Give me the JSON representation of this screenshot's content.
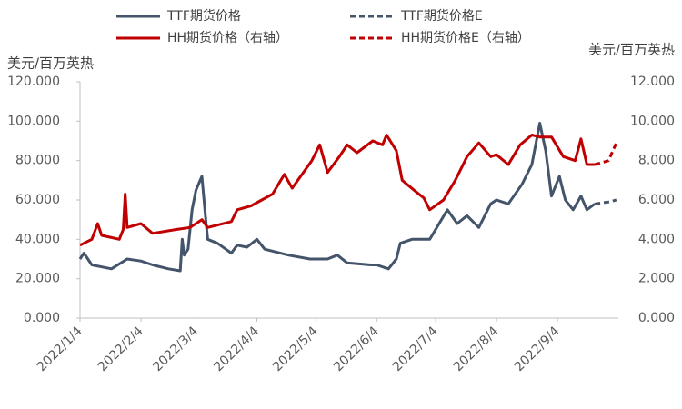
{
  "chart_data": {
    "type": "line",
    "ylabel": "美元/百万英热",
    "y2label": "美元/百万英热",
    "xlim": [
      "2022/1/4",
      "2022/10/5"
    ],
    "xticks": [
      "2022/1/4",
      "2022/2/4",
      "2022/3/4",
      "2022/4/4",
      "2022/5/4",
      "2022/6/4",
      "2022/7/4",
      "2022/8/4",
      "2022/9/4"
    ],
    "ylim": [
      0,
      120
    ],
    "yticks": [
      {
        "value": 0,
        "label": "0.000"
      },
      {
        "value": 20,
        "label": "20.000"
      },
      {
        "value": 40,
        "label": "40.000"
      },
      {
        "value": 60,
        "label": "60.000"
      },
      {
        "value": 80,
        "label": "80.000"
      },
      {
        "value": 100,
        "label": "100.000"
      },
      {
        "value": 120,
        "label": "120.000"
      }
    ],
    "y2lim": [
      0,
      12
    ],
    "y2ticks": [
      {
        "value": 0,
        "label": "0.000"
      },
      {
        "value": 2,
        "label": "2.000"
      },
      {
        "value": 4,
        "label": "4.000"
      },
      {
        "value": 6,
        "label": "6.000"
      },
      {
        "value": 8,
        "label": "8.000"
      },
      {
        "value": 10,
        "label": "10.000"
      },
      {
        "value": 12,
        "label": "12.000"
      }
    ],
    "series": [
      {
        "name": "TTF期货价格",
        "color": "#44546a",
        "dash": false,
        "x": [
          "2022/1/4",
          "2022/1/6",
          "2022/1/10",
          "2022/1/20",
          "2022/1/28",
          "2022/2/4",
          "2022/2/10",
          "2022/2/18",
          "2022/2/24",
          "2022/2/25",
          "2022/2/26",
          "2022/2/28",
          "2022/3/2",
          "2022/3/4",
          "2022/3/7",
          "2022/3/9",
          "2022/3/10",
          "2022/3/15",
          "2022/3/22",
          "2022/3/25",
          "2022/3/30",
          "2022/4/4",
          "2022/4/8",
          "2022/4/20",
          "2022/5/1",
          "2022/5/10",
          "2022/5/15",
          "2022/5/20",
          "2022/6/1",
          "2022/6/4",
          "2022/6/10",
          "2022/6/14",
          "2022/6/16",
          "2022/6/22",
          "2022/7/1",
          "2022/7/4",
          "2022/7/10",
          "2022/7/15",
          "2022/7/20",
          "2022/7/26",
          "2022/8/1",
          "2022/8/4",
          "2022/8/10",
          "2022/8/17",
          "2022/8/22",
          "2022/8/26",
          "2022/8/29",
          "2022/9/1",
          "2022/9/5",
          "2022/9/8",
          "2022/9/12",
          "2022/9/16",
          "2022/9/19",
          "2022/9/23"
        ],
        "values": [
          30,
          33,
          27,
          25,
          30,
          29,
          27,
          25,
          24,
          40,
          32,
          35,
          55,
          65,
          72,
          50,
          40,
          38,
          33,
          37,
          36,
          40,
          35,
          32,
          30,
          30,
          32,
          28,
          27,
          27,
          25,
          30,
          38,
          40,
          40,
          45,
          55,
          48,
          52,
          46,
          58,
          60,
          58,
          68,
          78,
          99,
          85,
          62,
          72,
          60,
          55,
          62,
          55,
          58
        ]
      },
      {
        "name": "TTF期货价格E",
        "color": "#44546a",
        "dash": true,
        "x": [
          "2022/9/23",
          "2022/9/30",
          "2022/10/4"
        ],
        "values": [
          58,
          59,
          60
        ]
      },
      {
        "name": "HH期货价格（右轴）",
        "color": "#c00000",
        "dash": false,
        "axis": "y2",
        "x": [
          "2022/1/4",
          "2022/1/10",
          "2022/1/13",
          "2022/1/15",
          "2022/1/24",
          "2022/1/26",
          "2022/1/27",
          "2022/1/28",
          "2022/2/4",
          "2022/2/10",
          "2022/2/22",
          "2022/3/1",
          "2022/3/7",
          "2022/3/10",
          "2022/3/22",
          "2022/3/25",
          "2022/4/1",
          "2022/4/12",
          "2022/4/18",
          "2022/4/22",
          "2022/5/2",
          "2022/5/6",
          "2022/5/10",
          "2022/5/16",
          "2022/5/20",
          "2022/5/25",
          "2022/6/2",
          "2022/6/7",
          "2022/6/9",
          "2022/6/14",
          "2022/6/17",
          "2022/6/23",
          "2022/6/28",
          "2022/7/1",
          "2022/7/8",
          "2022/7/14",
          "2022/7/20",
          "2022/7/26",
          "2022/8/1",
          "2022/8/4",
          "2022/8/10",
          "2022/8/16",
          "2022/8/22",
          "2022/8/26",
          "2022/9/1",
          "2022/9/7",
          "2022/9/13",
          "2022/9/16",
          "2022/9/19",
          "2022/9/23"
        ],
        "values": [
          3.7,
          4.0,
          4.8,
          4.2,
          4.0,
          4.5,
          6.3,
          4.6,
          4.8,
          4.3,
          4.5,
          4.6,
          5.0,
          4.6,
          4.9,
          5.5,
          5.7,
          6.3,
          7.3,
          6.6,
          8.0,
          8.8,
          7.4,
          8.2,
          8.8,
          8.4,
          9.0,
          8.8,
          9.3,
          8.5,
          7.0,
          6.5,
          6.1,
          5.5,
          6.0,
          7.0,
          8.2,
          8.9,
          8.2,
          8.3,
          7.8,
          8.8,
          9.3,
          9.2,
          9.2,
          8.2,
          8.0,
          9.1,
          7.8,
          7.8
        ]
      },
      {
        "name": "HH期货价格E（右轴）",
        "color": "#c00000",
        "dash": true,
        "axis": "y2",
        "x": [
          "2022/9/23",
          "2022/9/30",
          "2022/10/4"
        ],
        "values": [
          7.8,
          8.0,
          8.9
        ]
      }
    ]
  }
}
